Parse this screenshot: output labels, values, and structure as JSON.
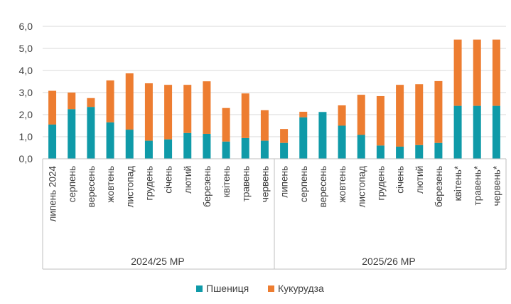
{
  "chart_data": {
    "type": "bar",
    "stacked": true,
    "title": "",
    "xlabel": "",
    "ylabel": "",
    "ylim": [
      0,
      6
    ],
    "yticks": [
      "0,0",
      "1,0",
      "2,0",
      "3,0",
      "4,0",
      "5,0",
      "6,0"
    ],
    "grid": true,
    "legend_position": "bottom",
    "groups": [
      {
        "label": "2024/25 МР",
        "categories": [
          "липень 2024",
          "серпень",
          "вересень",
          "жовтень",
          "листопад",
          "грудень",
          "січень",
          "лютий",
          "березень",
          "квітень",
          "травень",
          "червень"
        ]
      },
      {
        "label": "2025/26 МР",
        "categories": [
          "липень",
          "серпень",
          "вересень",
          "жовтень",
          "листопад",
          "грудень",
          "січень",
          "лютий",
          "березень",
          "квітень*",
          "травень*",
          "червень*"
        ]
      }
    ],
    "series": [
      {
        "name": "Пшениця",
        "color": "#0f9aa8",
        "values": [
          1.55,
          2.25,
          2.35,
          1.65,
          1.32,
          0.82,
          0.88,
          1.17,
          1.13,
          0.78,
          0.94,
          0.82,
          0.72,
          1.88,
          2.12,
          1.5,
          1.08,
          0.6,
          0.55,
          0.62,
          0.72,
          2.4,
          2.4,
          2.4
        ]
      },
      {
        "name": "Кукурудза",
        "color": "#ed7d31",
        "values": [
          1.53,
          0.75,
          0.4,
          1.9,
          2.55,
          2.6,
          2.47,
          2.18,
          2.38,
          1.52,
          2.02,
          1.38,
          0.63,
          0.25,
          0.0,
          0.92,
          1.82,
          2.24,
          2.8,
          2.76,
          2.8,
          3.0,
          3.0,
          3.0
        ]
      }
    ]
  }
}
